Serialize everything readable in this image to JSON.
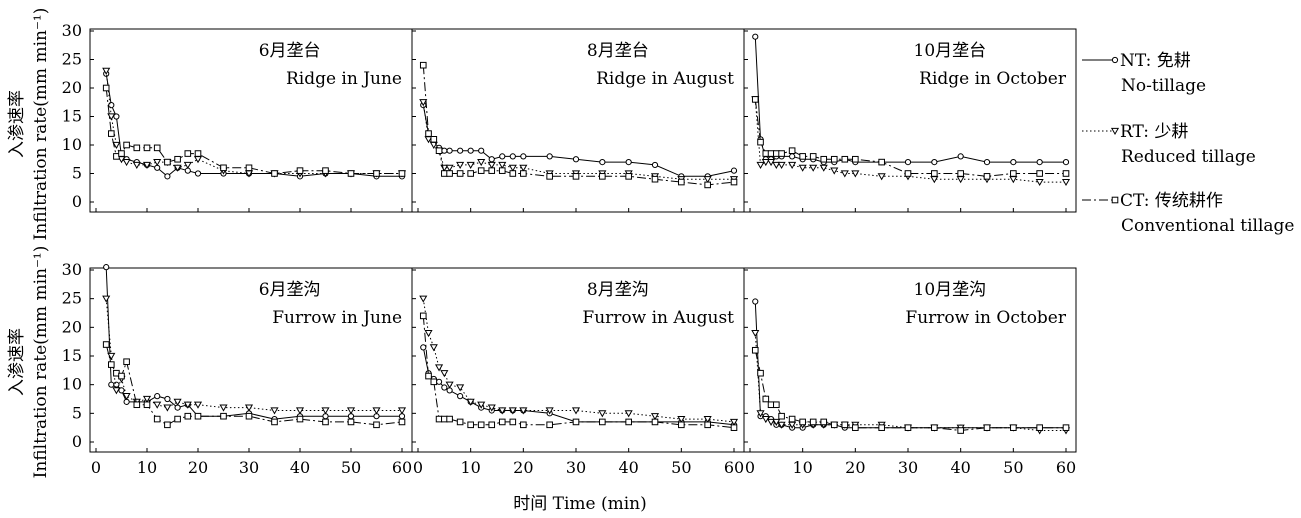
{
  "figure": {
    "y_axis_title_cn": "入渗速率",
    "y_axis_title_en": "Infiltration rate(mm min⁻¹)",
    "x_axis_title": "时间 Time (min)"
  },
  "legend": [
    {
      "code": "NT: 免耕",
      "name": "No-tillage",
      "series": "NT"
    },
    {
      "code": "RT: 少耕",
      "name": "Reduced tillage",
      "series": "RT"
    },
    {
      "code": "CT: 传统耕作",
      "name": "Conventional tillage",
      "series": "CT"
    }
  ],
  "series_styles": {
    "NT": {
      "marker": "circle",
      "line": "solid",
      "color": "#000000"
    },
    "RT": {
      "marker": "triangle-down",
      "line": "dotted",
      "color": "#000000"
    },
    "CT": {
      "marker": "square",
      "line": "dash-dot",
      "color": "#000000"
    }
  },
  "chart_data": [
    {
      "type": "line",
      "title_cn": "6月垄台",
      "title_en": "Ridge in June",
      "xlim": [
        0,
        60
      ],
      "ylim": [
        0,
        30
      ],
      "xticks": [
        "0",
        "10",
        "20",
        "30",
        "40",
        "50",
        "60"
      ],
      "yticks": [
        "0",
        "5",
        "10",
        "15",
        "20",
        "25",
        "30"
      ],
      "series": [
        {
          "name": "NT",
          "x": [
            2,
            3,
            4,
            5,
            6,
            8,
            10,
            12,
            14,
            16,
            18,
            20,
            25,
            30,
            35,
            40,
            45,
            50,
            55,
            60
          ],
          "y": [
            22.5,
            17,
            15,
            8,
            7.5,
            7,
            6.5,
            6,
            4.5,
            6,
            5.5,
            5,
            5,
            5,
            5,
            4.5,
            5,
            5,
            4.5,
            4.5
          ]
        },
        {
          "name": "RT",
          "x": [
            2,
            3,
            4,
            5,
            6,
            8,
            10,
            12,
            14,
            16,
            18,
            20,
            25,
            30,
            35,
            40,
            45,
            50,
            55,
            60
          ],
          "y": [
            23,
            15,
            10,
            7.5,
            7,
            6.5,
            6.5,
            7,
            7,
            6,
            6.5,
            7.5,
            5.5,
            5,
            5,
            5,
            5,
            5,
            5,
            5
          ]
        },
        {
          "name": "CT",
          "x": [
            2,
            3,
            4,
            5,
            6,
            8,
            10,
            12,
            14,
            16,
            18,
            20,
            25,
            30,
            35,
            40,
            45,
            50,
            55,
            60
          ],
          "y": [
            20,
            12,
            8,
            8.5,
            10,
            9.5,
            9.5,
            9.5,
            7,
            7.5,
            8.5,
            8.5,
            6,
            6,
            5,
            5.5,
            5.5,
            5,
            5,
            5
          ]
        }
      ]
    },
    {
      "type": "line",
      "title_cn": "8月垄台",
      "title_en": "Ridge in August",
      "xlim": [
        0,
        60
      ],
      "ylim": [
        0,
        30
      ],
      "xticks": [
        "0",
        "10",
        "20",
        "30",
        "40",
        "50",
        "60"
      ],
      "yticks": [
        "0",
        "5",
        "10",
        "15",
        "20",
        "25",
        "30"
      ],
      "series": [
        {
          "name": "NT",
          "x": [
            1,
            2,
            3,
            4,
            5,
            6,
            8,
            10,
            12,
            14,
            16,
            18,
            20,
            25,
            30,
            35,
            40,
            45,
            50,
            55,
            60
          ],
          "y": [
            17,
            12,
            10.5,
            9.5,
            9,
            9,
            9,
            9,
            9,
            7.5,
            8,
            8,
            8,
            8,
            7.5,
            7,
            7,
            6.5,
            4.5,
            4.5,
            5.5
          ]
        },
        {
          "name": "RT",
          "x": [
            1,
            2,
            3,
            4,
            5,
            6,
            8,
            10,
            12,
            14,
            16,
            18,
            20,
            25,
            30,
            35,
            40,
            45,
            50,
            55,
            60
          ],
          "y": [
            17.5,
            11,
            10,
            9,
            6,
            6,
            6.5,
            6.5,
            7,
            6.5,
            6.5,
            6,
            6,
            5,
            5,
            5,
            5,
            4.5,
            4,
            4,
            4
          ]
        },
        {
          "name": "CT",
          "x": [
            1,
            2,
            3,
            4,
            5,
            6,
            8,
            10,
            12,
            14,
            16,
            18,
            20,
            25,
            30,
            35,
            40,
            45,
            50,
            55,
            60
          ],
          "y": [
            24,
            12,
            11,
            9,
            5,
            5,
            5,
            5,
            5.5,
            5.5,
            5.5,
            5,
            5,
            4.5,
            4.5,
            4.5,
            4.5,
            4,
            3.5,
            3,
            3.5
          ]
        }
      ]
    },
    {
      "type": "line",
      "title_cn": "10月垄台",
      "title_en": "Ridge in October",
      "xlim": [
        0,
        60
      ],
      "ylim": [
        0,
        30
      ],
      "xticks": [
        "0",
        "10",
        "20",
        "30",
        "40",
        "50",
        "60"
      ],
      "yticks": [
        "0",
        "5",
        "10",
        "15",
        "20",
        "25",
        "30"
      ],
      "series": [
        {
          "name": "NT",
          "x": [
            1,
            2,
            3,
            4,
            5,
            6,
            8,
            10,
            12,
            14,
            16,
            18,
            20,
            25,
            30,
            35,
            40,
            45,
            50,
            55,
            60
          ],
          "y": [
            29,
            11,
            7.5,
            7.5,
            8,
            8,
            8,
            7.5,
            7.5,
            7,
            7,
            7.5,
            7,
            7,
            7,
            7,
            8,
            7,
            7,
            7,
            7
          ]
        },
        {
          "name": "RT",
          "x": [
            1,
            2,
            3,
            4,
            5,
            6,
            8,
            10,
            12,
            14,
            16,
            18,
            20,
            25,
            30,
            35,
            40,
            45,
            50,
            55,
            60
          ],
          "y": [
            18,
            6.5,
            7,
            7,
            6.5,
            6.5,
            6.5,
            6,
            6,
            6,
            5.5,
            5,
            5,
            4.5,
            4.5,
            4,
            4,
            4,
            4,
            3.5,
            3.5
          ]
        },
        {
          "name": "CT",
          "x": [
            1,
            2,
            3,
            4,
            5,
            6,
            8,
            10,
            12,
            14,
            16,
            18,
            20,
            25,
            30,
            35,
            40,
            45,
            50,
            55,
            60
          ],
          "y": [
            18,
            10.5,
            8.5,
            8.5,
            8.5,
            8.5,
            9,
            8,
            8,
            7.5,
            7.5,
            7.5,
            7.5,
            7,
            5,
            5,
            5,
            4.5,
            5,
            5,
            5
          ]
        }
      ]
    },
    {
      "type": "line",
      "title_cn": "6月垄沟",
      "title_en": "Furrow in June",
      "xlim": [
        0,
        60
      ],
      "ylim": [
        0,
        30
      ],
      "xticks": [
        "0",
        "10",
        "20",
        "30",
        "40",
        "50",
        "60"
      ],
      "yticks": [
        "0",
        "5",
        "10",
        "15",
        "20",
        "25",
        "30"
      ],
      "series": [
        {
          "name": "NT",
          "x": [
            2,
            3,
            4,
            5,
            6,
            8,
            10,
            12,
            14,
            16,
            18,
            20,
            25,
            30,
            35,
            40,
            45,
            50,
            55,
            60
          ],
          "y": [
            30.5,
            10,
            10,
            9,
            7,
            7,
            7,
            8,
            7.5,
            6,
            6.5,
            4.5,
            4.5,
            5,
            4,
            4.5,
            4.5,
            4.5,
            4.5,
            4.5
          ]
        },
        {
          "name": "RT",
          "x": [
            2,
            3,
            4,
            5,
            6,
            8,
            10,
            12,
            14,
            16,
            18,
            20,
            25,
            30,
            35,
            40,
            45,
            50,
            55,
            60
          ],
          "y": [
            25,
            15,
            9,
            11,
            8,
            7,
            7.5,
            6.5,
            6,
            7,
            6.5,
            6.5,
            6,
            6,
            5.5,
            5.5,
            5.5,
            5.5,
            5.5,
            5.5
          ]
        },
        {
          "name": "CT",
          "x": [
            2,
            3,
            4,
            5,
            6,
            8,
            10,
            12,
            14,
            16,
            18,
            20,
            25,
            30,
            35,
            40,
            45,
            50,
            55,
            60
          ],
          "y": [
            17,
            13.5,
            12,
            11.5,
            14,
            6.5,
            6.5,
            4,
            3,
            4,
            4.5,
            4.5,
            4.5,
            4.5,
            3.5,
            4,
            3.5,
            3.5,
            3,
            3.5
          ]
        }
      ]
    },
    {
      "type": "line",
      "title_cn": "8月垄沟",
      "title_en": "Furrow in August",
      "xlim": [
        0,
        60
      ],
      "ylim": [
        0,
        30
      ],
      "xticks": [
        "0",
        "10",
        "20",
        "30",
        "40",
        "50",
        "60"
      ],
      "yticks": [
        "0",
        "5",
        "10",
        "15",
        "20",
        "25",
        "30"
      ],
      "series": [
        {
          "name": "NT",
          "x": [
            1,
            2,
            3,
            4,
            5,
            6,
            8,
            10,
            12,
            14,
            16,
            18,
            20,
            25,
            30,
            35,
            40,
            45,
            50,
            55,
            60
          ],
          "y": [
            16.5,
            12,
            11,
            10.5,
            9.5,
            9,
            8,
            7,
            6,
            5.5,
            5.5,
            5.5,
            5.5,
            5,
            3.5,
            3.5,
            3.5,
            3.5,
            3.5,
            3.5,
            3
          ]
        },
        {
          "name": "RT",
          "x": [
            1,
            2,
            3,
            4,
            5,
            6,
            8,
            10,
            12,
            14,
            16,
            18,
            20,
            25,
            30,
            35,
            40,
            45,
            50,
            55,
            60
          ],
          "y": [
            25,
            19,
            16.5,
            13,
            12,
            10,
            9.5,
            7,
            6.5,
            6,
            5.5,
            5.5,
            5.5,
            5.5,
            5.5,
            5,
            5,
            4.5,
            4,
            4,
            3.5
          ]
        },
        {
          "name": "CT",
          "x": [
            1,
            2,
            3,
            4,
            5,
            6,
            8,
            10,
            12,
            14,
            16,
            18,
            20,
            25,
            30,
            35,
            40,
            45,
            50,
            55,
            60
          ],
          "y": [
            22,
            11.5,
            10.5,
            4,
            4,
            4,
            3.5,
            3,
            3,
            3,
            3.5,
            3.5,
            3,
            3,
            3.5,
            3.5,
            3.5,
            3.5,
            3,
            3,
            2.5
          ]
        }
      ]
    },
    {
      "type": "line",
      "title_cn": "10月垄沟",
      "title_en": "Furrow in October",
      "xlim": [
        0,
        60
      ],
      "ylim": [
        0,
        30
      ],
      "xticks": [
        "0",
        "10",
        "20",
        "30",
        "40",
        "50",
        "60"
      ],
      "yticks": [
        "0",
        "5",
        "10",
        "15",
        "20",
        "25",
        "30"
      ],
      "series": [
        {
          "name": "NT",
          "x": [
            1,
            2,
            3,
            4,
            5,
            6,
            8,
            10,
            12,
            14,
            16,
            18,
            20,
            25,
            30,
            35,
            40,
            45,
            50,
            55,
            60
          ],
          "y": [
            24.5,
            4.5,
            4.5,
            4,
            3,
            3,
            2.5,
            2.5,
            3,
            3,
            3,
            2.5,
            2.5,
            2.5,
            2.5,
            2.5,
            2.5,
            2.5,
            2.5,
            2.5,
            2.5
          ]
        },
        {
          "name": "RT",
          "x": [
            1,
            2,
            3,
            4,
            5,
            6,
            8,
            10,
            12,
            14,
            16,
            18,
            20,
            25,
            30,
            35,
            40,
            45,
            50,
            55,
            60
          ],
          "y": [
            19,
            5,
            4,
            3.5,
            3.5,
            3,
            3,
            3,
            3,
            3,
            3,
            3,
            3,
            3,
            2.5,
            2.5,
            2.5,
            2.5,
            2.5,
            2,
            2
          ]
        },
        {
          "name": "CT",
          "x": [
            1,
            2,
            3,
            4,
            5,
            6,
            8,
            10,
            12,
            14,
            16,
            18,
            20,
            25,
            30,
            35,
            40,
            45,
            50,
            55,
            60
          ],
          "y": [
            16,
            12,
            7.5,
            6.5,
            6.5,
            4.5,
            4,
            3.5,
            3.5,
            3.5,
            3,
            3,
            2.5,
            2.5,
            2.5,
            2.5,
            2,
            2.5,
            2.5,
            2.5,
            2.5
          ]
        }
      ]
    }
  ]
}
